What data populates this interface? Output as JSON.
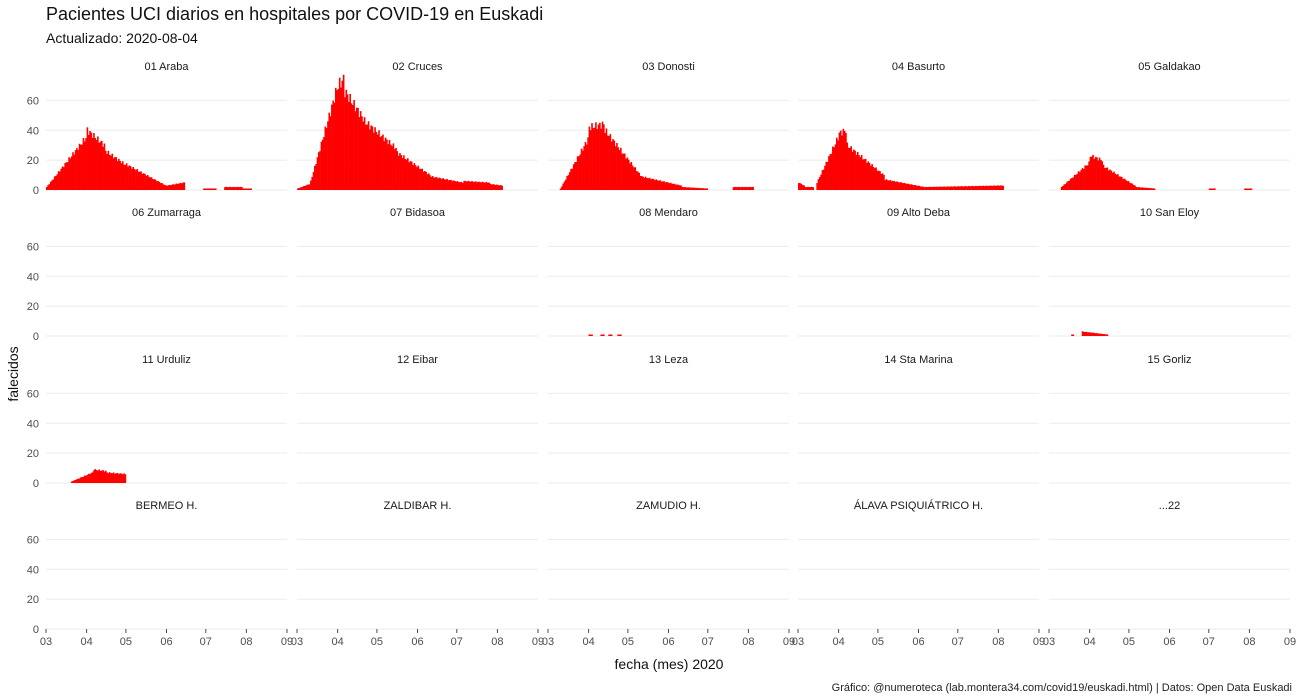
{
  "chart_data": {
    "type": "bar",
    "title": "Pacientes UCI diarios en hospitales por COVID-19 en Euskadi",
    "subtitle": "Actualizado: 2020-08-04",
    "xlabel": "fecha (mes) 2020",
    "ylabel": "falecidos",
    "caption": "Gráfico: @numeroteca (lab.montera34.com/covid19/euskadi.html) | Datos: Open Data Euskadi",
    "x_ticks": [
      "03",
      "04",
      "05",
      "06",
      "07",
      "08",
      "09"
    ],
    "xlim": [
      "2020-03-01",
      "2020-09-01"
    ],
    "y_ticks": [
      0,
      20,
      40,
      60
    ],
    "ylim": [
      0,
      75
    ],
    "grid": true,
    "color": "#ff0000",
    "facets": [
      {
        "label": "01 Araba",
        "series": [
          {
            "from": "2020-03-01",
            "to": "2020-03-31",
            "start": 2,
            "end": 35
          },
          {
            "from": "2020-04-01",
            "to": "2020-04-14",
            "start": 40,
            "end": 30
          },
          {
            "from": "2020-04-15",
            "to": "2020-04-30",
            "start": 26,
            "end": 17
          },
          {
            "from": "2020-05-01",
            "to": "2020-05-31",
            "start": 17,
            "end": 3
          },
          {
            "from": "2020-06-01",
            "to": "2020-06-14",
            "start": 3,
            "end": 5
          },
          {
            "from": "2020-06-29",
            "to": "2020-07-08",
            "start": 1,
            "end": 1
          },
          {
            "from": "2020-07-15",
            "to": "2020-07-28",
            "start": 2,
            "end": 2
          },
          {
            "from": "2020-07-29",
            "to": "2020-08-04",
            "start": 1,
            "end": 1
          }
        ]
      },
      {
        "label": "02 Cruces",
        "series": [
          {
            "from": "2020-03-01",
            "to": "2020-03-10",
            "start": 1,
            "end": 4
          },
          {
            "from": "2020-03-11",
            "to": "2020-03-31",
            "start": 6,
            "end": 68
          },
          {
            "from": "2020-04-01",
            "to": "2020-04-05",
            "start": 70,
            "end": 74
          },
          {
            "from": "2020-04-06",
            "to": "2020-04-20",
            "start": 66,
            "end": 48
          },
          {
            "from": "2020-04-21",
            "to": "2020-05-15",
            "start": 46,
            "end": 28
          },
          {
            "from": "2020-05-16",
            "to": "2020-06-10",
            "start": 25,
            "end": 10
          },
          {
            "from": "2020-06-11",
            "to": "2020-07-05",
            "start": 9,
            "end": 5
          },
          {
            "from": "2020-07-06",
            "to": "2020-07-25",
            "start": 6,
            "end": 5
          },
          {
            "from": "2020-07-26",
            "to": "2020-08-04",
            "start": 4,
            "end": 3
          }
        ]
      },
      {
        "label": "03 Donosti",
        "series": [
          {
            "from": "2020-03-10",
            "to": "2020-03-31",
            "start": 1,
            "end": 34
          },
          {
            "from": "2020-04-01",
            "to": "2020-04-12",
            "start": 42,
            "end": 44
          },
          {
            "from": "2020-04-13",
            "to": "2020-05-10",
            "start": 40,
            "end": 10
          },
          {
            "from": "2020-05-11",
            "to": "2020-06-10",
            "start": 9,
            "end": 3
          },
          {
            "from": "2020-06-11",
            "to": "2020-06-30",
            "start": 2,
            "end": 1
          },
          {
            "from": "2020-07-20",
            "to": "2020-08-04",
            "start": 2,
            "end": 2
          }
        ]
      },
      {
        "label": "04 Basurto",
        "series": [
          {
            "from": "2020-03-01",
            "to": "2020-03-05",
            "start": 5,
            "end": 3
          },
          {
            "from": "2020-03-06",
            "to": "2020-03-12",
            "start": 2,
            "end": 2
          },
          {
            "from": "2020-03-15",
            "to": "2020-03-31",
            "start": 5,
            "end": 35
          },
          {
            "from": "2020-04-01",
            "to": "2020-04-06",
            "start": 38,
            "end": 40
          },
          {
            "from": "2020-04-07",
            "to": "2020-05-05",
            "start": 30,
            "end": 10
          },
          {
            "from": "2020-05-06",
            "to": "2020-06-05",
            "start": 7,
            "end": 2
          },
          {
            "from": "2020-06-06",
            "to": "2020-08-04",
            "start": 2,
            "end": 3
          }
        ]
      },
      {
        "label": "05 Galdakao",
        "series": [
          {
            "from": "2020-03-10",
            "to": "2020-03-31",
            "start": 2,
            "end": 18
          },
          {
            "from": "2020-04-01",
            "to": "2020-04-10",
            "start": 23,
            "end": 20
          },
          {
            "from": "2020-04-11",
            "to": "2020-05-05",
            "start": 16,
            "end": 3
          },
          {
            "from": "2020-05-06",
            "to": "2020-05-20",
            "start": 2,
            "end": 1
          },
          {
            "from": "2020-07-01",
            "to": "2020-07-05",
            "start": 1,
            "end": 1
          },
          {
            "from": "2020-07-28",
            "to": "2020-08-02",
            "start": 1,
            "end": 1
          }
        ]
      },
      {
        "label": "06 Zumarraga",
        "series": []
      },
      {
        "label": "07 Bidasoa",
        "series": []
      },
      {
        "label": "08 Mendaro",
        "series": [
          {
            "from": "2020-04-01",
            "to": "2020-04-03",
            "start": 1,
            "end": 1
          },
          {
            "from": "2020-04-10",
            "to": "2020-04-12",
            "start": 1,
            "end": 1
          },
          {
            "from": "2020-04-16",
            "to": "2020-04-18",
            "start": 1,
            "end": 1
          },
          {
            "from": "2020-04-23",
            "to": "2020-04-25",
            "start": 1,
            "end": 1
          }
        ]
      },
      {
        "label": "09 Alto Deba",
        "series": []
      },
      {
        "label": "10 San Eloy",
        "series": [
          {
            "from": "2020-03-18",
            "to": "2020-03-19",
            "start": 1,
            "end": 1
          },
          {
            "from": "2020-03-26",
            "to": "2020-04-14",
            "start": 3,
            "end": 1
          }
        ]
      },
      {
        "label": "11 Urduliz",
        "series": [
          {
            "from": "2020-03-20",
            "to": "2020-04-05",
            "start": 1,
            "end": 7
          },
          {
            "from": "2020-04-06",
            "to": "2020-04-15",
            "start": 9,
            "end": 8
          },
          {
            "from": "2020-04-16",
            "to": "2020-04-30",
            "start": 7,
            "end": 6
          }
        ]
      },
      {
        "label": "12 Eibar",
        "series": []
      },
      {
        "label": "13 Leza",
        "series": []
      },
      {
        "label": "14 Sta Marina",
        "series": []
      },
      {
        "label": "15 Gorliz",
        "series": []
      },
      {
        "label": "BERMEO H.",
        "series": []
      },
      {
        "label": "ZALDIBAR H.",
        "series": []
      },
      {
        "label": "ZAMUDIO H.",
        "series": []
      },
      {
        "label": "ÁLAVA PSIQUIÁTRICO H.",
        "series": []
      },
      {
        "label": "...22",
        "series": []
      }
    ]
  }
}
